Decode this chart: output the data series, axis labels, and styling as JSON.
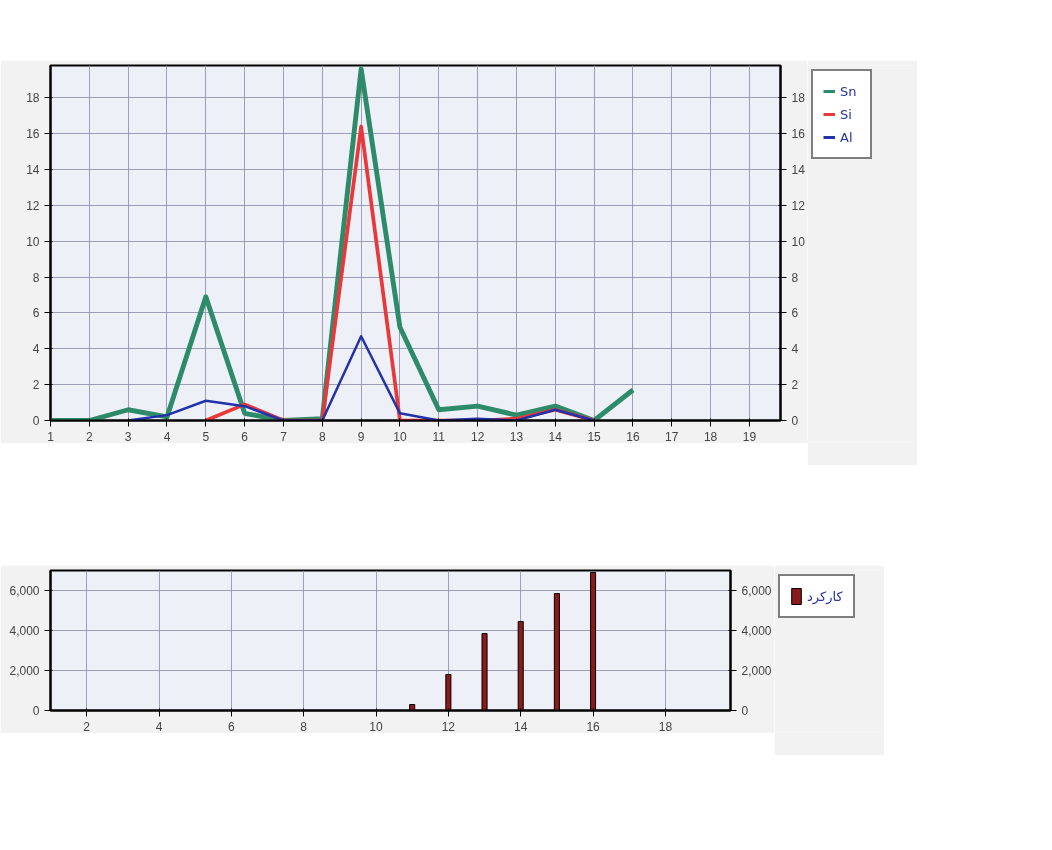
{
  "chart_data": [
    {
      "type": "line",
      "x": [
        1,
        2,
        3,
        4,
        5,
        6,
        7,
        8,
        9,
        10,
        11,
        12,
        13,
        14,
        15,
        16
      ],
      "xlim": [
        1,
        19.8
      ],
      "xticks": [
        1,
        2,
        3,
        4,
        5,
        6,
        7,
        8,
        9,
        10,
        11,
        12,
        13,
        14,
        15,
        16,
        17,
        18,
        19
      ],
      "ylim": [
        0,
        19.8
      ],
      "yticks": [
        0,
        2,
        4,
        6,
        8,
        10,
        12,
        14,
        16,
        18
      ],
      "y2lim": [
        0,
        19.8
      ],
      "y2ticks": [
        0,
        2,
        4,
        6,
        8,
        10,
        12,
        14,
        16,
        18
      ],
      "grid": true,
      "legend": "right",
      "line_style": "solid",
      "series": [
        {
          "name": "Sn",
          "color": "#2e8b6a",
          "values": [
            0,
            0,
            0.6,
            0.2,
            6.9,
            0.4,
            0,
            0.1,
            19.6,
            5.2,
            0.6,
            0.8,
            0.3,
            0.8,
            0,
            1.7
          ]
        },
        {
          "name": "Si",
          "color": "#e8383a",
          "values": [
            null,
            null,
            null,
            null,
            0,
            0.9,
            0,
            0,
            16.4,
            0,
            0,
            0,
            0.1,
            0.6,
            0,
            null
          ]
        },
        {
          "name": "Al",
          "color": "#2233aa",
          "values": [
            null,
            null,
            0,
            0.3,
            1.1,
            0.8,
            0,
            0,
            4.7,
            0.4,
            0,
            0.1,
            0,
            0.6,
            0,
            null
          ]
        }
      ]
    },
    {
      "type": "bar",
      "x": [
        11,
        12,
        13,
        14,
        15,
        16
      ],
      "xlim": [
        1,
        19.8
      ],
      "xticks": [
        2,
        4,
        6,
        8,
        10,
        12,
        14,
        16,
        18
      ],
      "ylim": [
        0,
        7000
      ],
      "yticks": [
        0,
        {
          "value": 2000,
          "label": "2,000"
        },
        {
          "value": 4000,
          "label": "4,000"
        },
        {
          "value": 6000,
          "label": "6,000"
        }
      ],
      "y2lim": [
        0,
        7000
      ],
      "y2ticks": [
        0,
        {
          "value": 2000,
          "label": "2,000"
        },
        {
          "value": 4000,
          "label": "4,000"
        },
        {
          "value": 6000,
          "label": "6,000"
        }
      ],
      "grid": true,
      "legend": "right",
      "series": [
        {
          "name": "کارکرد",
          "color": "#8b1a1a",
          "values": [
            300,
            1800,
            3850,
            4450,
            5850,
            6900
          ]
        }
      ]
    }
  ]
}
